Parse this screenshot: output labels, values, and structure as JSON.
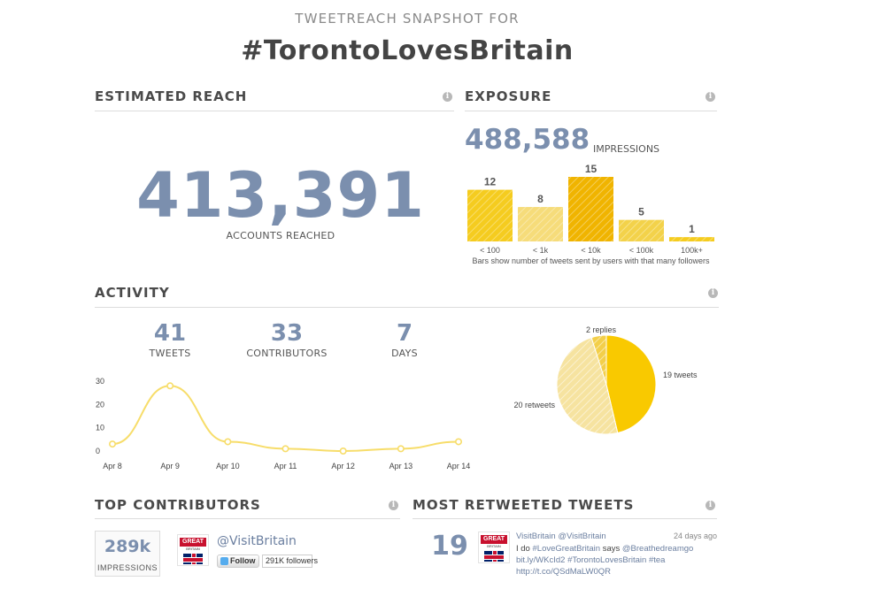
{
  "header": {
    "subtitle": "TWEETREACH SNAPSHOT FOR",
    "title": "#TorontoLovesBritain"
  },
  "reach": {
    "title": "ESTIMATED REACH",
    "value": "413,391",
    "label": "ACCOUNTS REACHED",
    "info_icon": "info-icon"
  },
  "exposure": {
    "title": "EXPOSURE",
    "value": "488,588",
    "label": "IMPRESSIONS",
    "note": "Bars show number of tweets sent by users with that many followers",
    "info_icon": "info-icon"
  },
  "activity": {
    "title": "ACTIVITY",
    "info_icon": "info-icon",
    "stats": [
      {
        "value": "41",
        "label": "TWEETS"
      },
      {
        "value": "33",
        "label": "CONTRIBUTORS"
      },
      {
        "value": "7",
        "label": "DAYS"
      }
    ]
  },
  "chart_data": [
    {
      "type": "bar",
      "categories": [
        "< 100",
        "< 1k",
        "< 10k",
        "< 100k",
        "100k+"
      ],
      "values": [
        12,
        8,
        15,
        5,
        1
      ],
      "value_labels": [
        "12",
        "8",
        "15",
        "5",
        "1"
      ],
      "ylim": [
        0,
        15
      ],
      "grid": false,
      "colors": [
        "#f5cc1f",
        "#f6dc7a",
        "#f0b400",
        "#f3d24a",
        "#f5cc1f"
      ]
    },
    {
      "type": "line",
      "x": [
        "Apr 8",
        "Apr 9",
        "Apr 10",
        "Apr 11",
        "Apr 12",
        "Apr 13",
        "Apr 14"
      ],
      "values": [
        3,
        28,
        4,
        1,
        0,
        1,
        4
      ],
      "y_ticks": [
        "0",
        "10",
        "20",
        "30"
      ],
      "ylim": [
        0,
        30
      ],
      "grid": false,
      "color": "#f7dd6a"
    },
    {
      "type": "pie",
      "labels": [
        "19 tweets",
        "20 retweets",
        "2 replies"
      ],
      "values": [
        19,
        20,
        2
      ],
      "colors": [
        "#f9c900",
        "#f6e3a0",
        "#f3cf4a"
      ]
    }
  ],
  "top_contributors": {
    "title": "TOP CONTRIBUTORS",
    "info_icon": "info-icon",
    "impressions_value": "289k",
    "impressions_label": "IMPRESSIONS",
    "logo_text": "GREAT",
    "logo_sub": "BRITAIN",
    "handle": "@VisitBritain",
    "follow_label": "Follow",
    "follower_count": "291K followers"
  },
  "most_retweeted": {
    "title": "MOST RETWEETED TWEETS",
    "info_icon": "info-icon",
    "count": "19",
    "logo_text": "GREAT",
    "logo_sub": "BRITAIN",
    "user": "VisitBritain @VisitBritain",
    "time_ago": "24 days ago",
    "line1_pre": "I do ",
    "line1_tag": "#LoveGreatBritain",
    "line1_mid": " says ",
    "line1_mention": "@Breathedreamgo",
    "line2_link": "bit.ly/WKcId2",
    "line2_tags": "#TorontoLovesBritain #tea",
    "line3_link": "http://t.co/QSdMaLW0QR"
  }
}
